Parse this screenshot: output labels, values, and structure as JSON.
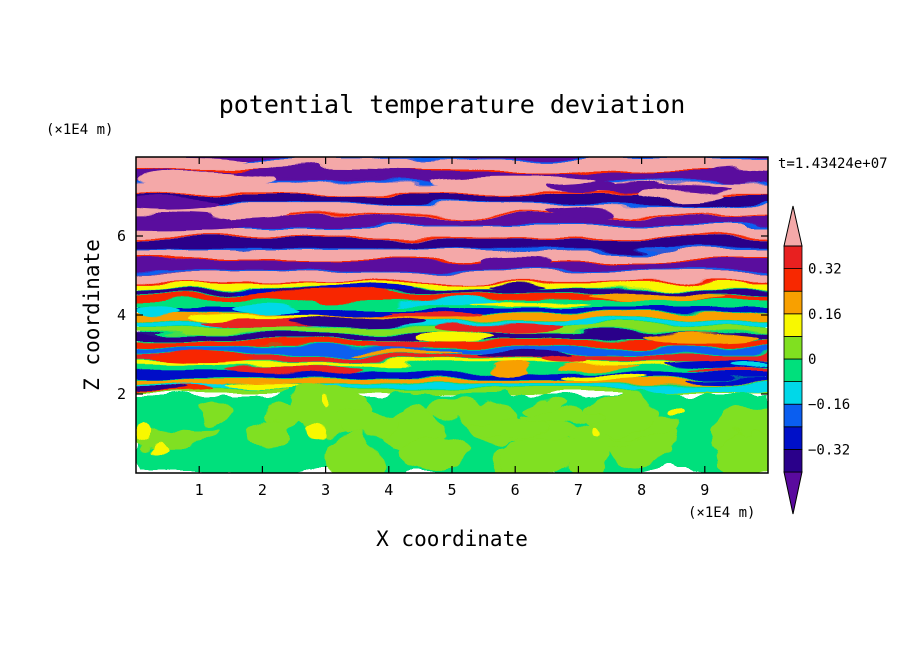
{
  "chart_data": {
    "type": "heatmap",
    "title": "potential temperature deviation",
    "xlabel": "X coordinate",
    "ylabel": "Z coordinate",
    "x_unit": "(×1E4 m)",
    "y_unit": "(×1E4 m)",
    "time_label": "t=1.43424e+07",
    "xlim": [
      0,
      10
    ],
    "ylim": [
      0,
      8
    ],
    "x_ticks": [
      "1",
      "2",
      "3",
      "4",
      "5",
      "6",
      "7",
      "8",
      "9"
    ],
    "y_ticks": [
      "2",
      "4",
      "6"
    ],
    "colorbar": {
      "levels": [
        -0.4,
        -0.32,
        -0.24,
        -0.16,
        -0.08,
        0,
        0.08,
        0.16,
        0.24,
        0.32,
        0.4
      ],
      "tick_labels": [
        "0.32",
        "0.16",
        "0",
        "−0.16",
        "−0.32"
      ],
      "colors": [
        "#5a0a9e",
        "#2a008a",
        "#0010c8",
        "#0a5ef0",
        "#00d8e8",
        "#00e07c",
        "#80e020",
        "#f8f800",
        "#f8a000",
        "#f82800",
        "#e82020",
        "#f4a8a8"
      ]
    },
    "regions": [
      {
        "z_range": [
          0,
          2
        ],
        "description_values": [
          -0.08,
          0.08
        ]
      },
      {
        "z_range": [
          2,
          5
        ],
        "description_values": [
          -0.4,
          0.4
        ]
      },
      {
        "z_range": [
          5,
          8
        ],
        "description_values": [
          -0.4,
          0.4
        ]
      }
    ]
  }
}
